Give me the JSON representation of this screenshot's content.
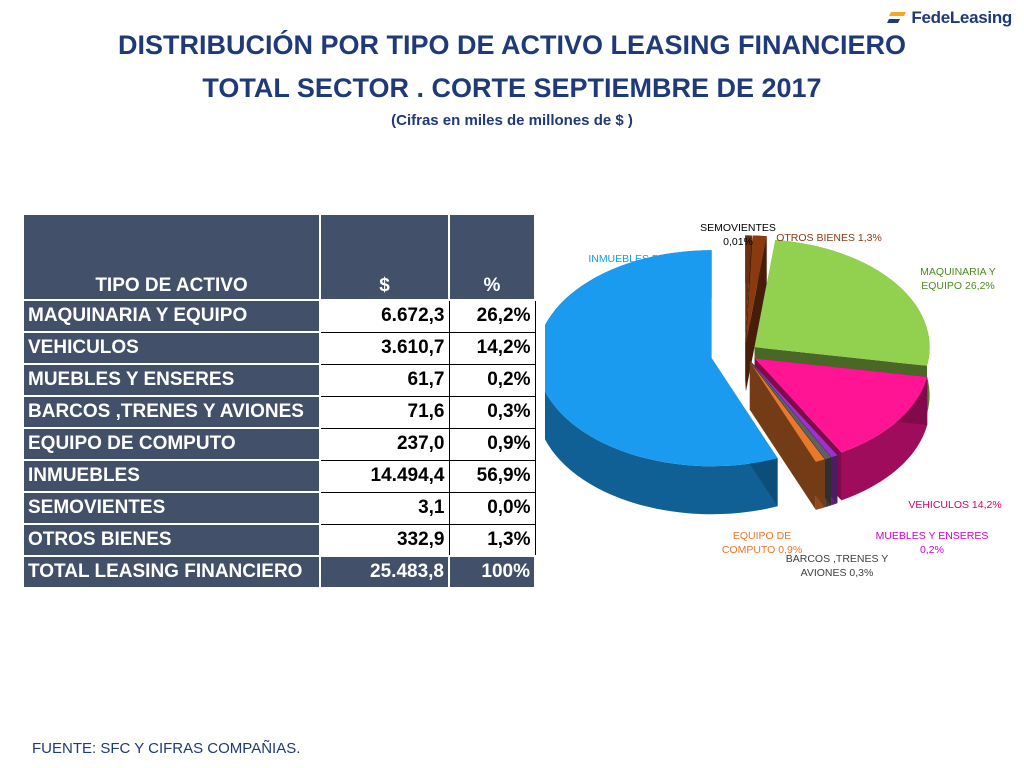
{
  "logo": {
    "text": "FedeLeasing"
  },
  "title": {
    "line1": "DISTRIBUCIÓN POR TIPO DE ACTIVO LEASING FINANCIERO",
    "line2": "TOTAL SECTOR . CORTE SEPTIEMBRE DE 2017",
    "subtitle": "(Cifras en miles de millones de $ )"
  },
  "table": {
    "headers": [
      "TIPO  DE ACTIVO",
      "$",
      "%"
    ],
    "rows": [
      {
        "label": "MAQUINARIA Y EQUIPO",
        "value": "6.672,3",
        "pct": "26,2%"
      },
      {
        "label": "VEHICULOS",
        "value": "3.610,7",
        "pct": "14,2%"
      },
      {
        "label": "MUEBLES Y ENSERES",
        "value": "61,7",
        "pct": "0,2%"
      },
      {
        "label": "BARCOS ,TRENES Y AVIONES",
        "value": "71,6",
        "pct": "0,3%"
      },
      {
        "label": "EQUIPO DE COMPUTO",
        "value": "237,0",
        "pct": "0,9%"
      },
      {
        "label": "INMUEBLES",
        "value": "14.494,4",
        "pct": "56,9%"
      },
      {
        "label": "SEMOVIENTES",
        "value": "3,1",
        "pct": "0,0%"
      },
      {
        "label": "OTROS BIENES",
        "value": "332,9",
        "pct": "1,3%"
      }
    ],
    "total": {
      "label": "TOTAL LEASING FINANCIERO",
      "value": "25.483,8",
      "pct": "100%"
    }
  },
  "chart_data": {
    "type": "pie",
    "exploded": true,
    "three_d": true,
    "slices": [
      {
        "label": "SEMOVIENTES 0,01%",
        "value": 0.01,
        "color": "#6b2f0f"
      },
      {
        "label": "OTROS BIENES 1,3%",
        "value": 1.3,
        "color": "#8b3a0f"
      },
      {
        "label": "MAQUINARIA Y EQUIPO 26,2%",
        "value": 26.2,
        "color": "#92d050"
      },
      {
        "label": "VEHICULOS 14,2%",
        "value": 14.2,
        "color": "#ff1493"
      },
      {
        "label": "MUEBLES Y ENSERES 0,2%",
        "value": 0.2,
        "color": "#9933cc"
      },
      {
        "label": "BARCOS ,TRENES Y AVIONES 0,3%",
        "value": 0.3,
        "color": "#606060"
      },
      {
        "label": "EQUIPO DE COMPUTO 0,9%",
        "value": 0.9,
        "color": "#e8782b"
      },
      {
        "label": "INMUEBLES 56,9%",
        "value": 56.9,
        "color": "#1a9bf0"
      }
    ]
  },
  "footer": {
    "source": "FUENTE: SFC Y CIFRAS COMPAÑIAS."
  }
}
